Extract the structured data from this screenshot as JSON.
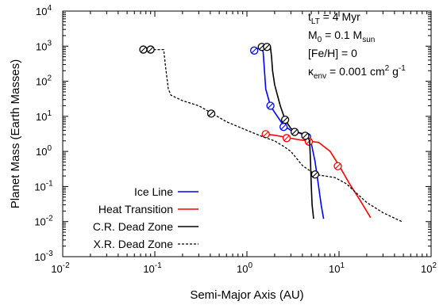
{
  "chart_data": {
    "type": "line",
    "title": "",
    "xlabel": "Semi-Major Axis (AU)",
    "ylabel": "Planet Mass (Earth Masses)",
    "xscale": "log",
    "yscale": "log",
    "xlim": [
      0.01,
      100
    ],
    "ylim": [
      0.001,
      10000
    ],
    "x_ticks": [
      {
        "value": 0.01,
        "base": "10",
        "exp": "-2"
      },
      {
        "value": 0.1,
        "base": "10",
        "exp": "-1"
      },
      {
        "value": 1,
        "base": "10",
        "exp": "0"
      },
      {
        "value": 10,
        "base": "10",
        "exp": "1"
      },
      {
        "value": 100,
        "base": "10",
        "exp": "2"
      }
    ],
    "y_ticks": [
      {
        "value": 0.001,
        "base": "10",
        "exp": "-3"
      },
      {
        "value": 0.01,
        "base": "10",
        "exp": "-2"
      },
      {
        "value": 0.1,
        "base": "10",
        "exp": "-1"
      },
      {
        "value": 1,
        "base": "10",
        "exp": "0"
      },
      {
        "value": 10,
        "base": "10",
        "exp": "1"
      },
      {
        "value": 100,
        "base": "10",
        "exp": "2"
      },
      {
        "value": 1000,
        "base": "10",
        "exp": "3"
      },
      {
        "value": 10000,
        "base": "10",
        "exp": "4"
      }
    ],
    "grid": false,
    "legend_position": "bottom-left",
    "annotation_lines": [
      {
        "parts": [
          {
            "t": "t",
            "s": "n"
          },
          {
            "t": "LT",
            "s": "sub"
          },
          {
            "t": " = 4 Myr",
            "s": "n"
          }
        ]
      },
      {
        "parts": [
          {
            "t": "M",
            "s": "n"
          },
          {
            "t": "0",
            "s": "sub"
          },
          {
            "t": " = 0.1 M",
            "s": "n"
          },
          {
            "t": "sun",
            "s": "sub"
          }
        ]
      },
      {
        "parts": [
          {
            "t": "[Fe/H] = 0",
            "s": "n"
          }
        ]
      },
      {
        "parts": [
          {
            "t": "κ",
            "s": "n"
          },
          {
            "t": "env",
            "s": "sub"
          },
          {
            "t": " = 0.001 cm",
            "s": "n"
          },
          {
            "t": "2",
            "s": "sup"
          },
          {
            "t": " g",
            "s": "n"
          },
          {
            "t": "-1",
            "s": "sup"
          }
        ]
      }
    ],
    "series": [
      {
        "name": "Ice Line",
        "color": "#0000ff",
        "dash": "solid",
        "points": [
          [
            1.2,
            800
          ],
          [
            1.4,
            900
          ],
          [
            1.5,
            700
          ],
          [
            1.55,
            200
          ],
          [
            1.6,
            60
          ],
          [
            1.8,
            20
          ],
          [
            2.0,
            13
          ],
          [
            2.5,
            5.5
          ],
          [
            3.0,
            4
          ],
          [
            3.5,
            3.6
          ],
          [
            4.0,
            3.1
          ],
          [
            4.5,
            2.5
          ],
          [
            5.0,
            1.7
          ],
          [
            5.5,
            0.5
          ],
          [
            6.0,
            0.1
          ],
          [
            6.4,
            0.03
          ],
          [
            6.8,
            0.012
          ]
        ],
        "markers": [
          [
            1.2,
            750
          ],
          [
            1.8,
            20
          ],
          [
            2.5,
            5
          ],
          [
            4.5,
            2.6
          ]
        ]
      },
      {
        "name": "Heat Transition",
        "color": "#ff0000",
        "dash": "solid",
        "points": [
          [
            1.6,
            3.1
          ],
          [
            2.0,
            2.9
          ],
          [
            2.7,
            2.5
          ],
          [
            3.5,
            2.2
          ],
          [
            4.5,
            2.0
          ],
          [
            6.0,
            1.8
          ],
          [
            8.0,
            1.0
          ],
          [
            10.0,
            0.4
          ],
          [
            13.0,
            0.12
          ],
          [
            17.0,
            0.04
          ],
          [
            22.0,
            0.013
          ]
        ],
        "markers": [
          [
            1.6,
            3.1
          ],
          [
            2.7,
            2.4
          ],
          [
            4.7,
            1.9
          ],
          [
            9.7,
            0.38
          ]
        ]
      },
      {
        "name": "C.R. Dead Zone",
        "color": "#000000",
        "dash": "solid",
        "points": [
          [
            1.35,
            950
          ],
          [
            1.8,
            950
          ],
          [
            1.85,
            500
          ],
          [
            1.9,
            200
          ],
          [
            2.0,
            80
          ],
          [
            2.3,
            20
          ],
          [
            2.6,
            8
          ],
          [
            3.0,
            4.5
          ],
          [
            3.5,
            3.6
          ],
          [
            4.0,
            3.2
          ],
          [
            4.5,
            2.8
          ],
          [
            4.8,
            2.0
          ],
          [
            4.9,
            0.5
          ],
          [
            5.0,
            0.1
          ],
          [
            5.1,
            0.03
          ],
          [
            5.3,
            0.012
          ]
        ],
        "markers": [
          [
            1.45,
            950
          ],
          [
            1.65,
            950
          ],
          [
            2.6,
            8
          ],
          [
            3.3,
            3.6
          ],
          [
            4.3,
            2.8
          ]
        ]
      },
      {
        "name": "X.R. Dead Zone",
        "color": "#000000",
        "dash": "dashed",
        "points": [
          [
            0.072,
            800
          ],
          [
            0.125,
            800
          ],
          [
            0.13,
            300
          ],
          [
            0.14,
            60
          ],
          [
            0.15,
            40
          ],
          [
            0.2,
            28
          ],
          [
            0.3,
            20
          ],
          [
            0.4,
            13
          ],
          [
            0.6,
            7
          ],
          [
            1.0,
            4
          ],
          [
            1.5,
            2.6
          ],
          [
            2.0,
            2.0
          ],
          [
            2.5,
            1.4
          ],
          [
            3.0,
            1.0
          ],
          [
            4.0,
            0.4
          ],
          [
            5.5,
            0.22
          ],
          [
            7.0,
            0.2
          ],
          [
            9.0,
            0.18
          ],
          [
            12.0,
            0.12
          ],
          [
            15.0,
            0.07
          ],
          [
            20.0,
            0.035
          ],
          [
            30.0,
            0.018
          ],
          [
            48.0,
            0.01
          ]
        ],
        "markers": [
          [
            0.075,
            800
          ],
          [
            0.09,
            800
          ],
          [
            0.41,
            12
          ],
          [
            5.5,
            0.22
          ]
        ]
      }
    ]
  }
}
